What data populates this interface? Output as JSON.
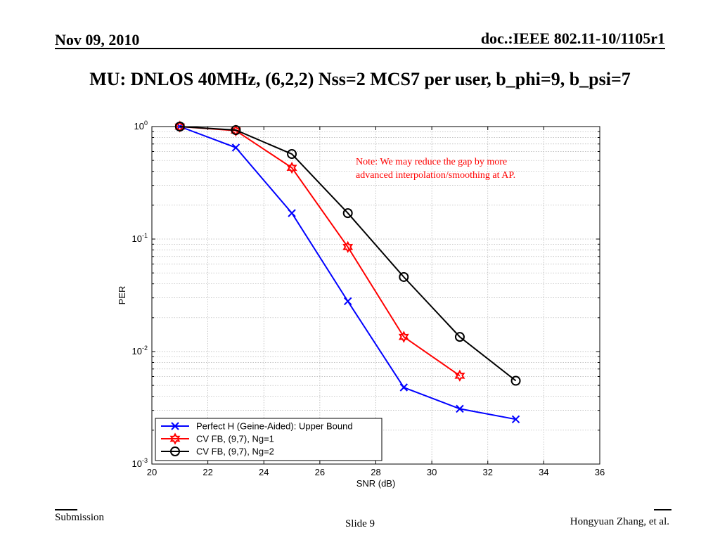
{
  "header": {
    "date": "Nov 09, 2010",
    "doc_id": "doc.:IEEE 802.11-10/1105r1"
  },
  "slide": {
    "title": "MU: DNLOS 40MHz, (6,2,2) Nss=2 MCS7 per user, b_phi=9, b_psi=7"
  },
  "annotation": {
    "note_line1": "Note: We may reduce the gap by more",
    "note_line2": "advanced interpolation/smoothing at AP."
  },
  "footer": {
    "left": "Submission",
    "center": "Slide 9",
    "right": "Hongyuan Zhang, et al."
  },
  "chart_data": {
    "type": "line",
    "xlabel": "SNR (dB)",
    "ylabel": "PER",
    "xlim": [
      20,
      36
    ],
    "ylim": [
      0.001,
      1
    ],
    "yscale": "log",
    "grid": true,
    "legend_position": "bottom-left",
    "x_ticks": [
      "20",
      "22",
      "24",
      "26",
      "28",
      "30",
      "32",
      "34",
      "36"
    ],
    "y_ticks": [
      {
        "base": "10",
        "exp": "0",
        "value": 1
      },
      {
        "base": "10",
        "exp": "-1",
        "value": 0.1
      },
      {
        "base": "10",
        "exp": "-2",
        "value": 0.01
      },
      {
        "base": "10",
        "exp": "-3",
        "value": 0.001
      }
    ],
    "series": [
      {
        "name": "Perfect H (Geine-Aided): Upper Bound",
        "color": "#0000ff",
        "marker": "x",
        "x": [
          21,
          23,
          25,
          27,
          29,
          31,
          33
        ],
        "y": [
          1.0,
          0.65,
          0.17,
          0.028,
          0.0048,
          0.0031,
          0.0025
        ]
      },
      {
        "name": "CV FB, (9,7), Ng=1",
        "color": "#ff0000",
        "marker": "hexagram",
        "x": [
          21,
          23,
          25,
          27,
          29,
          31
        ],
        "y": [
          1.0,
          0.92,
          0.43,
          0.085,
          0.0135,
          0.0061
        ]
      },
      {
        "name": "CV FB, (9,7), Ng=2",
        "color": "#000000",
        "marker": "circle",
        "x": [
          21,
          23,
          25,
          27,
          29,
          31,
          33
        ],
        "y": [
          1.0,
          0.93,
          0.57,
          0.17,
          0.046,
          0.0135,
          0.0055
        ]
      }
    ]
  }
}
